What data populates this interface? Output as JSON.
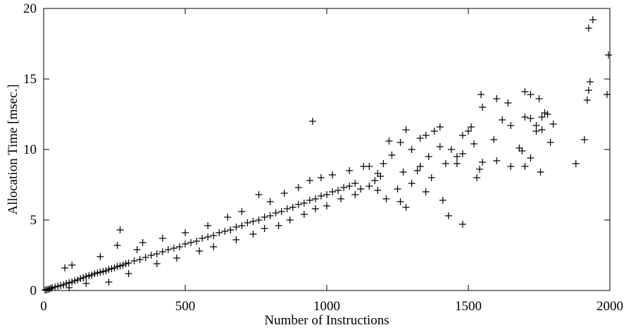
{
  "chart_data": {
    "type": "scatter",
    "xlabel": "Number of Instructions",
    "ylabel": "Allocation Time [msec.]",
    "xlim": [
      0,
      2000
    ],
    "xticks": [
      0,
      500,
      1000,
      1500,
      2000
    ],
    "ylim": [
      0,
      20
    ],
    "yticks": [
      0,
      5,
      10,
      15,
      20
    ],
    "color": "#000000",
    "x": [
      5,
      10,
      15,
      20,
      25,
      30,
      40,
      50,
      60,
      70,
      80,
      90,
      100,
      110,
      120,
      130,
      140,
      150,
      160,
      170,
      180,
      190,
      200,
      210,
      220,
      230,
      240,
      250,
      260,
      270,
      280,
      290,
      300,
      320,
      340,
      360,
      380,
      400,
      420,
      440,
      460,
      480,
      500,
      520,
      540,
      560,
      580,
      600,
      620,
      640,
      660,
      680,
      700,
      720,
      740,
      760,
      780,
      800,
      820,
      840,
      860,
      880,
      900,
      920,
      940,
      960,
      980,
      1000,
      1020,
      1040,
      1060,
      1080,
      1100,
      75,
      100,
      90,
      150,
      200,
      230,
      260,
      300,
      330,
      350,
      400,
      420,
      470,
      500,
      550,
      580,
      600,
      650,
      680,
      700,
      740,
      760,
      780,
      800,
      830,
      850,
      870,
      900,
      920,
      940,
      960,
      980,
      1000,
      1020,
      1050,
      1080,
      1100,
      1120,
      1130,
      1150,
      1170,
      1190,
      1250,
      1270,
      1300,
      1330,
      1360,
      1940,
      1925,
      1995,
      1930,
      1925,
      1990,
      1920,
      1910,
      1880,
      950,
      270,
      1545,
      1550,
      1600,
      1640,
      1700,
      1720,
      1750,
      1700,
      1720,
      1740,
      1760,
      1770,
      1780,
      1800,
      1790,
      1740,
      1760,
      1650,
      1680,
      1690,
      1700,
      1720,
      1755,
      1620,
      1590,
      1550,
      1540,
      1530,
      1480,
      1430,
      1410,
      1400,
      1380,
      1350,
      1330,
      1300,
      1320,
      1280,
      1260,
      1220,
      1230,
      1200,
      1180,
      1150,
      1180,
      1210,
      1260,
      1280,
      1350,
      1370,
      1420,
      1400,
      1440,
      1460,
      1480,
      1500,
      1520,
      1510,
      1480,
      1460,
      1600,
      1650
    ],
    "values": [
      0.03,
      0.05,
      0.08,
      0.1,
      0.15,
      0.2,
      0.25,
      0.3,
      0.35,
      0.4,
      0.5,
      0.55,
      0.6,
      0.7,
      0.75,
      0.85,
      0.9,
      1.0,
      1.05,
      1.1,
      1.2,
      1.25,
      1.3,
      1.35,
      1.4,
      1.5,
      1.55,
      1.6,
      1.7,
      1.75,
      1.8,
      1.9,
      1.95,
      2.1,
      2.2,
      2.35,
      2.5,
      2.6,
      2.75,
      2.9,
      3.0,
      3.1,
      3.3,
      3.4,
      3.5,
      3.7,
      3.8,
      3.9,
      4.1,
      4.2,
      4.3,
      4.5,
      4.6,
      4.8,
      4.9,
      5.0,
      5.2,
      5.3,
      5.5,
      5.6,
      5.8,
      5.9,
      6.1,
      6.2,
      6.4,
      6.5,
      6.7,
      6.8,
      7.0,
      7.1,
      7.3,
      7.4,
      7.6,
      1.6,
      1.8,
      0.2,
      0.5,
      2.4,
      0.6,
      3.2,
      1.2,
      2.9,
      3.4,
      1.9,
      3.7,
      2.3,
      4.1,
      2.8,
      4.6,
      3.1,
      5.2,
      3.6,
      5.6,
      4.0,
      6.8,
      4.4,
      6.3,
      4.6,
      6.9,
      5.0,
      7.3,
      5.4,
      7.8,
      5.8,
      8.0,
      6.0,
      8.2,
      6.5,
      8.5,
      6.8,
      7.2,
      8.8,
      7.4,
      7.8,
      8.1,
      7.2,
      8.4,
      7.6,
      8.8,
      9.5,
      19.2,
      18.6,
      16.7,
      14.8,
      14.2,
      13.9,
      13.5,
      10.7,
      9.0,
      12.0,
      4.3,
      13.9,
      13.0,
      13.6,
      13.3,
      14.1,
      13.9,
      13.6,
      12.3,
      12.2,
      11.7,
      12.3,
      12.6,
      12.5,
      11.8,
      10.5,
      11.3,
      11.4,
      11.7,
      10.1,
      9.9,
      8.8,
      9.4,
      8.4,
      12.1,
      10.7,
      9.1,
      8.6,
      8.0,
      4.7,
      5.3,
      6.4,
      11.6,
      11.3,
      11.0,
      10.8,
      10.0,
      8.5,
      11.4,
      10.5,
      10.6,
      9.6,
      9.0,
      8.3,
      8.8,
      7.1,
      6.5,
      6.3,
      5.9,
      7.0,
      8.0,
      9.0,
      10.2,
      10.0,
      9.5,
      9.7,
      11.3,
      10.4,
      11.6,
      11.0,
      9.0,
      9.2,
      8.8
    ]
  }
}
